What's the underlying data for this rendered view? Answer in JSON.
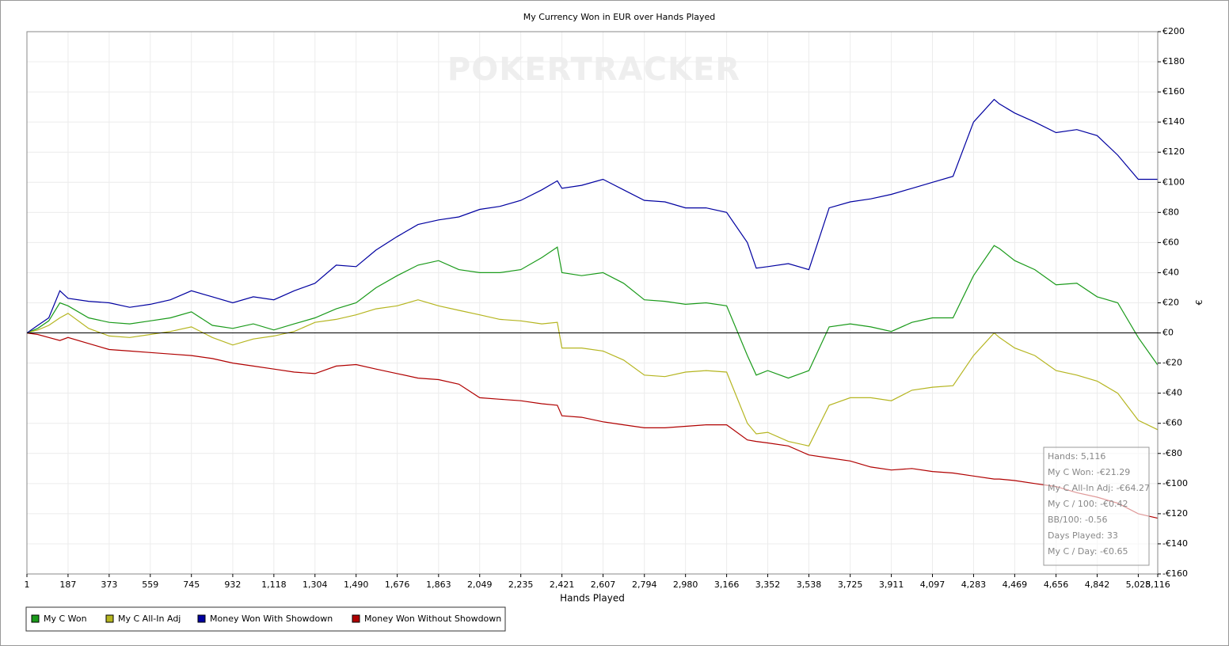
{
  "chart_data": {
    "type": "line",
    "title": "My Currency Won in EUR over Hands Played",
    "watermark": "POKERTRACKER",
    "x_label": "Hands Played",
    "y_label": "€",
    "grid": true,
    "legend": "bottom-left",
    "x": [
      1,
      50,
      100,
      150,
      187,
      280,
      373,
      466,
      559,
      650,
      745,
      840,
      932,
      1025,
      1118,
      1210,
      1304,
      1400,
      1490,
      1580,
      1676,
      1770,
      1863,
      1955,
      2049,
      2140,
      2235,
      2330,
      2400,
      2421,
      2510,
      2607,
      2700,
      2794,
      2887,
      2980,
      3073,
      3166,
      3260,
      3300,
      3352,
      3445,
      3538,
      3630,
      3725,
      3818,
      3911,
      4004,
      4097,
      4190,
      4283,
      4376,
      4400,
      4469,
      4560,
      4656,
      4750,
      4842,
      4935,
      5028,
      5116
    ],
    "xlim": [
      1,
      5116
    ],
    "xticks": [
      1,
      187,
      373,
      559,
      745,
      {
        "value": 932,
        "label": "932"
      },
      {
        "value": 1118,
        "label": "1,118"
      },
      {
        "value": 1304,
        "label": "1,304"
      },
      {
        "value": 1490,
        "label": "1,490"
      },
      {
        "value": 1676,
        "label": "1,676"
      },
      {
        "value": 1863,
        "label": "1,863"
      },
      {
        "value": 2049,
        "label": "2,049"
      },
      {
        "value": 2235,
        "label": "2,235"
      },
      {
        "value": 2421,
        "label": "2,421"
      },
      {
        "value": 2607,
        "label": "2,607"
      },
      {
        "value": 2794,
        "label": "2,794"
      },
      {
        "value": 2980,
        "label": "2,980"
      },
      {
        "value": 3166,
        "label": "3,166"
      },
      {
        "value": 3352,
        "label": "3,352"
      },
      {
        "value": 3538,
        "label": "3,538"
      },
      {
        "value": 3725,
        "label": "3,725"
      },
      {
        "value": 3911,
        "label": "3,911"
      },
      {
        "value": 4097,
        "label": "4,097"
      },
      {
        "value": 4283,
        "label": "4,283"
      },
      {
        "value": 4469,
        "label": "4,469"
      },
      {
        "value": 4656,
        "label": "4,656"
      },
      {
        "value": 4842,
        "label": "4,842"
      },
      {
        "value": 5028,
        "label": "5,028"
      },
      {
        "value": 5116,
        "label": "5,116"
      }
    ],
    "ylim": [
      -160,
      200
    ],
    "yticks": [
      {
        "value": -160,
        "label": "-€160"
      },
      {
        "value": -140,
        "label": "-€140"
      },
      {
        "value": -120,
        "label": "-€120"
      },
      {
        "value": -100,
        "label": "-€100"
      },
      {
        "value": -80,
        "label": "-€80"
      },
      {
        "value": -60,
        "label": "-€60"
      },
      {
        "value": -40,
        "label": "-€40"
      },
      {
        "value": -20,
        "label": "-€20"
      },
      {
        "value": 0,
        "label": "€0"
      },
      {
        "value": 20,
        "label": "€20"
      },
      {
        "value": 40,
        "label": "€40"
      },
      {
        "value": 60,
        "label": "€60"
      },
      {
        "value": 80,
        "label": "€80"
      },
      {
        "value": 100,
        "label": "€100"
      },
      {
        "value": 120,
        "label": "€120"
      },
      {
        "value": 140,
        "label": "€140"
      },
      {
        "value": 160,
        "label": "€160"
      },
      {
        "value": 180,
        "label": "€180"
      },
      {
        "value": 200,
        "label": "€200"
      }
    ],
    "series": [
      {
        "name": "My C Won",
        "color": "#1a9a1a",
        "values": [
          0,
          3,
          8,
          20,
          18,
          10,
          7,
          6,
          8,
          10,
          14,
          5,
          3,
          6,
          2,
          6,
          10,
          16,
          20,
          30,
          38,
          45,
          48,
          42,
          40,
          40,
          42,
          50,
          57,
          40,
          38,
          40,
          33,
          22,
          21,
          19,
          20,
          18,
          -15,
          -28,
          -25,
          -30,
          -25,
          4,
          6,
          4,
          1,
          7,
          10,
          10,
          38,
          58,
          56,
          48,
          42,
          32,
          33,
          24,
          20,
          -3,
          -21.29
        ]
      },
      {
        "name": "My C All-In Adj",
        "color": "#b5b520",
        "values": [
          0,
          2,
          5,
          10,
          13,
          3,
          -2,
          -3,
          -1,
          1,
          4,
          -3,
          -8,
          -4,
          -2,
          1,
          7,
          9,
          12,
          16,
          18,
          22,
          18,
          15,
          12,
          9,
          8,
          6,
          7,
          -10,
          -10,
          -12,
          -18,
          -28,
          -29,
          -26,
          -25,
          -26,
          -60,
          -67,
          -66,
          -72,
          -75,
          -48,
          -43,
          -43,
          -45,
          -38,
          -36,
          -35,
          -15,
          0,
          -3,
          -10,
          -15,
          -25,
          -28,
          -32,
          -40,
          -58,
          -64.27
        ]
      },
      {
        "name": "Money Won With Showdown",
        "color": "#0000a0",
        "values": [
          0,
          5,
          10,
          28,
          23,
          21,
          20,
          17,
          19,
          22,
          28,
          24,
          20,
          24,
          22,
          28,
          33,
          45,
          44,
          55,
          64,
          72,
          75,
          77,
          82,
          84,
          88,
          95,
          101,
          96,
          98,
          102,
          95,
          88,
          87,
          83,
          83,
          80,
          60,
          43,
          44,
          46,
          42,
          83,
          87,
          89,
          92,
          96,
          100,
          104,
          140,
          155,
          152,
          146,
          140,
          133,
          135,
          131,
          118,
          102,
          102
        ]
      },
      {
        "name": "Money Won Without Showdown",
        "color": "#b00000",
        "values": [
          0,
          -1,
          -3,
          -5,
          -3,
          -7,
          -11,
          -12,
          -13,
          -14,
          -15,
          -17,
          -20,
          -22,
          -24,
          -26,
          -27,
          -22,
          -21,
          -24,
          -27,
          -30,
          -31,
          -34,
          -43,
          -44,
          -45,
          -47,
          -48,
          -55,
          -56,
          -59,
          -61,
          -63,
          -63,
          -62,
          -61,
          -61,
          -71,
          -72,
          -73,
          -75,
          -81,
          -83,
          -85,
          -89,
          -91,
          -90,
          -92,
          -93,
          -95,
          -97,
          -97,
          -98,
          -100,
          -102,
          -106,
          -109,
          -113,
          -120,
          -123
        ]
      }
    ],
    "tooltip": [
      "Hands: 5,116",
      "My C Won: -€21.29",
      "My C All-In Adj: -€64.27",
      "My C / 100: -€0.42",
      "BB/100: -0.56",
      "Days Played: 33",
      "My C / Day: -€0.65"
    ]
  }
}
